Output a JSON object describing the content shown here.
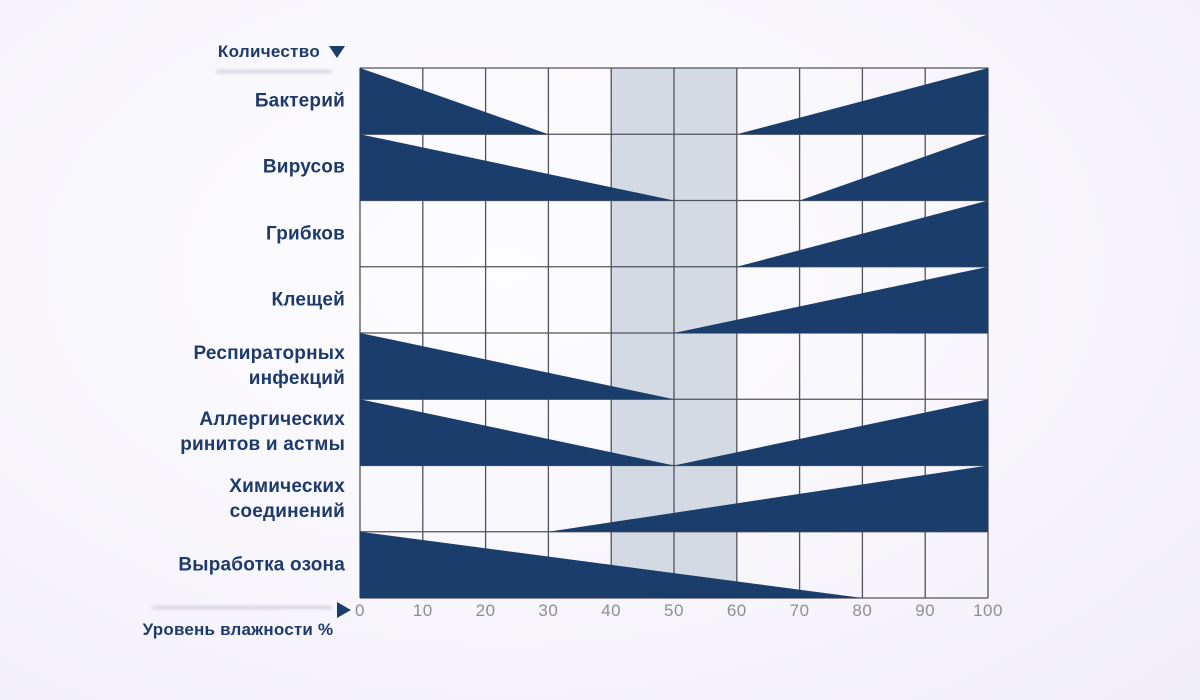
{
  "header": {
    "quantity_label": "Количество"
  },
  "x_axis": {
    "label": "Уровень влажности %"
  },
  "chart_data": {
    "type": "area",
    "title": "",
    "y_axis_label": "Количество",
    "x_axis_label": "Уровень влажности %",
    "x_min": 0,
    "x_max": 100,
    "x_ticks": [
      0,
      10,
      20,
      30,
      40,
      50,
      60,
      70,
      80,
      90,
      100
    ],
    "grid": true,
    "optimal_band": {
      "from": 40,
      "to": 60
    },
    "rows": [
      {
        "label": "Бактерий",
        "label_lines": [
          "Бактерий"
        ],
        "segments": [
          {
            "trend": "decreasing",
            "from": 0,
            "to": 30
          },
          {
            "trend": "increasing",
            "from": 60,
            "to": 100
          }
        ]
      },
      {
        "label": "Вирусов",
        "label_lines": [
          "Вирусов"
        ],
        "segments": [
          {
            "trend": "decreasing",
            "from": 0,
            "to": 50
          },
          {
            "trend": "increasing",
            "from": 70,
            "to": 100
          }
        ]
      },
      {
        "label": "Грибков",
        "label_lines": [
          "Грибков"
        ],
        "segments": [
          {
            "trend": "increasing",
            "from": 60,
            "to": 100
          }
        ]
      },
      {
        "label": "Клещей",
        "label_lines": [
          "Клещей"
        ],
        "segments": [
          {
            "trend": "increasing",
            "from": 50,
            "to": 100
          }
        ]
      },
      {
        "label": "Респираторных инфекций",
        "label_lines": [
          "Респираторных",
          "инфекций"
        ],
        "segments": [
          {
            "trend": "decreasing",
            "from": 0,
            "to": 50
          }
        ]
      },
      {
        "label": "Аллергических ринитов и астмы",
        "label_lines": [
          "Аллергических",
          "ринитов и астмы"
        ],
        "segments": [
          {
            "trend": "decreasing",
            "from": 0,
            "to": 50
          },
          {
            "trend": "increasing",
            "from": 50,
            "to": 100
          }
        ]
      },
      {
        "label": "Химических соединений",
        "label_lines": [
          "Химических",
          "соединений"
        ],
        "segments": [
          {
            "trend": "increasing",
            "from": 30,
            "to": 100
          }
        ]
      },
      {
        "label": "Выработка озона",
        "label_lines": [
          "Выработка озона"
        ],
        "segments": [
          {
            "trend": "decreasing",
            "from": 0,
            "to": 80
          }
        ]
      }
    ],
    "colors": {
      "triangle_fill": "#1b3d6b",
      "optimal_band_fill": "#d3dae3",
      "grid_line": "#52525c",
      "row_label_text": "#1e3a6a",
      "tick_text": "#8d8d96"
    }
  }
}
